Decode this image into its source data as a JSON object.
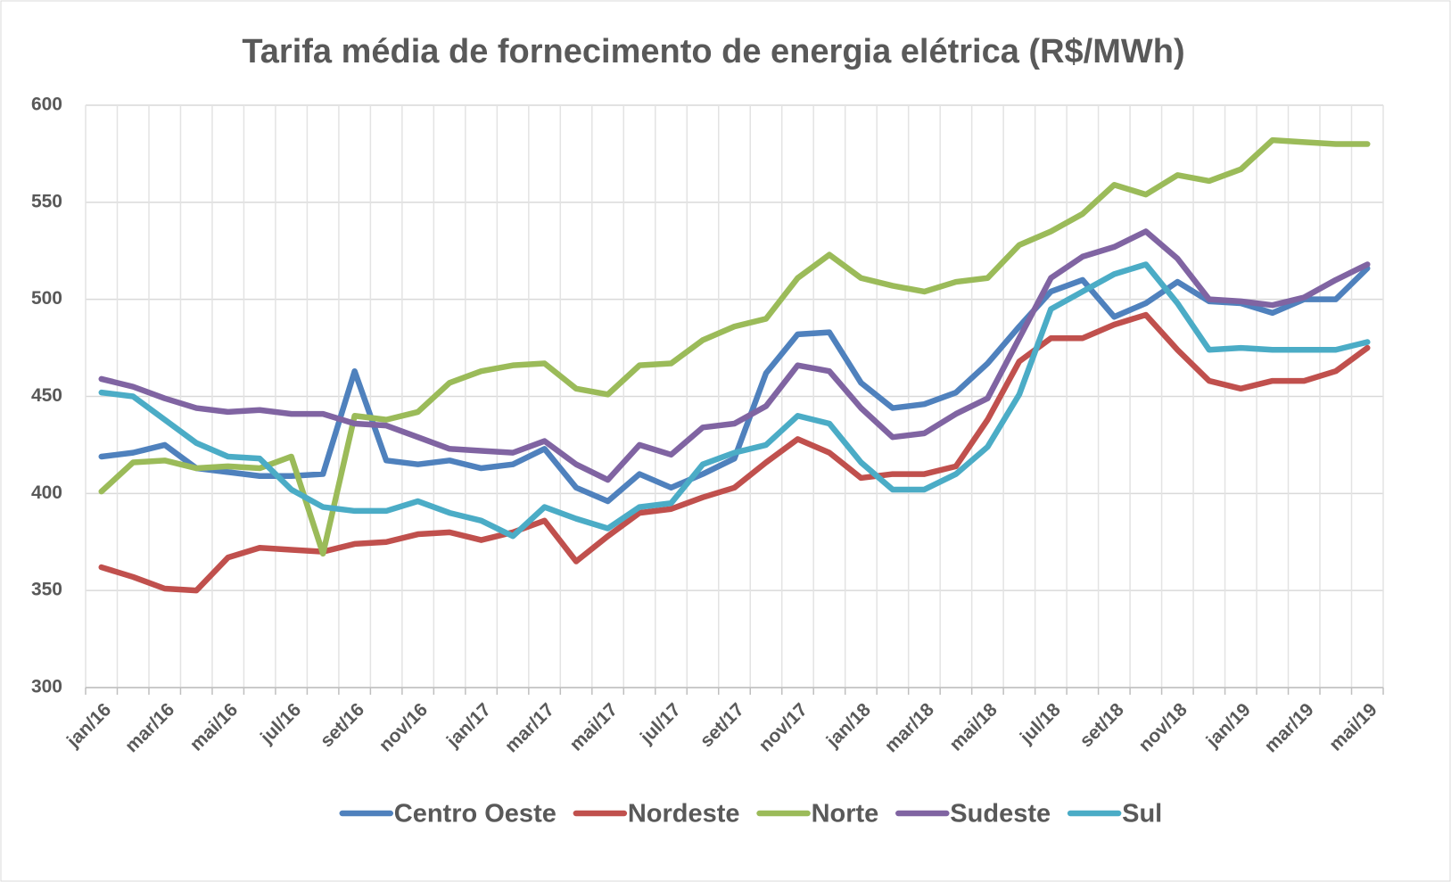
{
  "chart_data": {
    "type": "line",
    "title": "Tarifa média de fornecimento de energia elétrica (R$/MWh)",
    "categories": [
      "jan/16",
      null,
      "mar/16",
      null,
      "mai/16",
      null,
      "jul/16",
      null,
      "set/16",
      null,
      "nov/16",
      null,
      "jan/17",
      null,
      "mar/17",
      null,
      "mai/17",
      null,
      "jul/17",
      null,
      "set/17",
      null,
      "nov/17",
      null,
      "jan/18",
      null,
      "mar/18",
      null,
      "mai/18",
      null,
      "jul/18",
      null,
      "set/18",
      null,
      "nov/18",
      null,
      "jan/19",
      null,
      "mar/19",
      null,
      "mai/19"
    ],
    "series": [
      {
        "name": "Centro Oeste",
        "color": "#4f81bd",
        "values": [
          419,
          421,
          425,
          413,
          411,
          409,
          409,
          410,
          463,
          417,
          415,
          417,
          413,
          415,
          423,
          403,
          396,
          410,
          403,
          410,
          418,
          462,
          482,
          483,
          457,
          444,
          446,
          452,
          467,
          486,
          504,
          510,
          491,
          498,
          509,
          499,
          498,
          493,
          500,
          500,
          516
        ]
      },
      {
        "name": "Nordeste",
        "color": "#c0504d",
        "values": [
          362,
          357,
          351,
          350,
          367,
          372,
          371,
          370,
          374,
          375,
          379,
          380,
          376,
          380,
          386,
          365,
          378,
          390,
          392,
          398,
          403,
          416,
          428,
          421,
          408,
          410,
          410,
          414,
          438,
          468,
          480,
          480,
          487,
          492,
          474,
          458,
          454,
          458,
          458,
          463,
          475
        ]
      },
      {
        "name": "Norte",
        "color": "#9bbb59",
        "values": [
          401,
          416,
          417,
          413,
          414,
          413,
          419,
          369,
          440,
          438,
          442,
          457,
          463,
          466,
          467,
          454,
          451,
          466,
          467,
          479,
          486,
          490,
          511,
          523,
          511,
          507,
          504,
          509,
          511,
          528,
          535,
          544,
          559,
          554,
          564,
          561,
          567,
          582,
          581,
          580,
          580
        ]
      },
      {
        "name": "Sudeste",
        "color": "#8064a2",
        "values": [
          459,
          455,
          449,
          444,
          442,
          443,
          441,
          441,
          436,
          435,
          429,
          423,
          422,
          421,
          427,
          415,
          407,
          425,
          420,
          434,
          436,
          445,
          466,
          463,
          444,
          429,
          431,
          441,
          449,
          480,
          511,
          522,
          527,
          535,
          521,
          500,
          499,
          497,
          501,
          510,
          518
        ]
      },
      {
        "name": "Sul",
        "color": "#4bacc6",
        "values": [
          452,
          450,
          438,
          426,
          419,
          418,
          402,
          393,
          391,
          391,
          396,
          390,
          386,
          378,
          393,
          387,
          382,
          393,
          395,
          415,
          421,
          425,
          440,
          436,
          416,
          402,
          402,
          410,
          424,
          451,
          495,
          504,
          513,
          518,
          498,
          474,
          475,
          474,
          474,
          474,
          478
        ]
      }
    ],
    "ylim": [
      300,
      600
    ],
    "yticks": [
      300,
      350,
      400,
      450,
      500,
      550,
      600
    ],
    "grid": true,
    "legend": "bottom"
  }
}
